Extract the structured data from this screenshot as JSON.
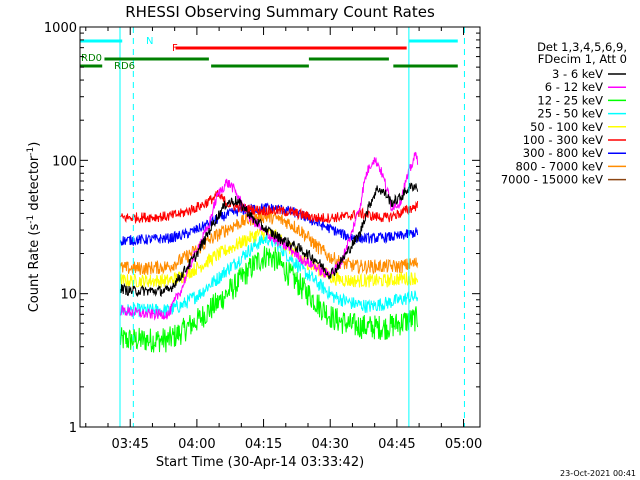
{
  "chart_data": {
    "type": "line",
    "title": "RHESSI Observing Summary Count Rates",
    "xlabel": "Start Time (30-Apr-14 03:33:42)",
    "ylabel_pre": "Count Rate (s",
    "ylabel_sup1": "-1",
    "ylabel_mid": " detector",
    "ylabel_sup2": "-1",
    "ylabel_post": ")",
    "y_scale": "log",
    "ylim": [
      1,
      1000
    ],
    "xlim_minutes": [
      0,
      90
    ],
    "y_ticks": [
      {
        "value": 1,
        "label": "1"
      },
      {
        "value": 10,
        "label": "10"
      },
      {
        "value": 100,
        "label": "100"
      },
      {
        "value": 1000,
        "label": "1000"
      }
    ],
    "x_ticks": [
      {
        "minute": 11.3,
        "label": "03:45"
      },
      {
        "minute": 26.3,
        "label": "04:00"
      },
      {
        "minute": 41.3,
        "label": "04:15"
      },
      {
        "minute": 56.3,
        "label": "04:30"
      },
      {
        "minute": 71.3,
        "label": "04:45"
      },
      {
        "minute": 86.3,
        "label": "05:00"
      }
    ],
    "legend_header": [
      "Det 1,3,4,5,6,9,",
      "FDecim 1, Att 0"
    ],
    "data_gap_minutes": [
      [
        0,
        9
      ],
      [
        73,
        90
      ]
    ],
    "series": [
      {
        "name": "3 - 6 keV",
        "color": "#000000",
        "points": [
          [
            9,
            11
          ],
          [
            11,
            10.5
          ],
          [
            15,
            10.5
          ],
          [
            20,
            10.5
          ],
          [
            23,
            14
          ],
          [
            26,
            19
          ],
          [
            28,
            25
          ],
          [
            31,
            38
          ],
          [
            33,
            48
          ],
          [
            35,
            50
          ],
          [
            37,
            44
          ],
          [
            39,
            36
          ],
          [
            42,
            30
          ],
          [
            45,
            26
          ],
          [
            48,
            23
          ],
          [
            51,
            20
          ],
          [
            53,
            18
          ],
          [
            54.5,
            16
          ],
          [
            56,
            14
          ],
          [
            57.5,
            15
          ],
          [
            60,
            20
          ],
          [
            63,
            28
          ],
          [
            65,
            45
          ],
          [
            67,
            62
          ],
          [
            69,
            55
          ],
          [
            70,
            48
          ],
          [
            72,
            52
          ],
          [
            74,
            62
          ],
          [
            75.5,
            65
          ],
          [
            76,
            60
          ]
        ]
      },
      {
        "name": "6 - 12 keV",
        "color": "#ff00ff",
        "points": [
          [
            9,
            7.5
          ],
          [
            15,
            7
          ],
          [
            20,
            7
          ],
          [
            23,
            11
          ],
          [
            26,
            20
          ],
          [
            29,
            32
          ],
          [
            31,
            55
          ],
          [
            33,
            68
          ],
          [
            34,
            65
          ],
          [
            36,
            50
          ],
          [
            38,
            38
          ],
          [
            41,
            30
          ],
          [
            44,
            25
          ],
          [
            47,
            22
          ],
          [
            50,
            18
          ],
          [
            53,
            16
          ],
          [
            55,
            14
          ],
          [
            57,
            14.5
          ],
          [
            59,
            18
          ],
          [
            61,
            27
          ],
          [
            63,
            45
          ],
          [
            64.5,
            80
          ],
          [
            66,
            102
          ],
          [
            67,
            95
          ],
          [
            68.5,
            70
          ],
          [
            70,
            45
          ],
          [
            72,
            48
          ],
          [
            74,
            80
          ],
          [
            75.5,
            110
          ],
          [
            76,
            100
          ]
        ]
      },
      {
        "name": "12 - 25 keV",
        "color": "#00ff00",
        "points": [
          [
            9,
            4.5
          ],
          [
            15,
            4.5
          ],
          [
            20,
            4.5
          ],
          [
            23,
            5.2
          ],
          [
            27,
            6.5
          ],
          [
            31,
            8.5
          ],
          [
            35,
            11.5
          ],
          [
            38,
            15
          ],
          [
            40,
            17.5
          ],
          [
            42,
            19.5
          ],
          [
            44,
            18
          ],
          [
            47,
            14
          ],
          [
            50,
            11
          ],
          [
            54,
            8
          ],
          [
            57,
            6.5
          ],
          [
            61,
            5.8
          ],
          [
            65,
            5.6
          ],
          [
            69,
            5.6
          ],
          [
            72,
            6
          ],
          [
            74,
            6.3
          ],
          [
            76,
            6.5
          ]
        ]
      },
      {
        "name": "25 - 50 keV",
        "color": "#00ffff",
        "points": [
          [
            9,
            7.5
          ],
          [
            15,
            7.5
          ],
          [
            20,
            7.5
          ],
          [
            23,
            8.2
          ],
          [
            27,
            10
          ],
          [
            31,
            13
          ],
          [
            35,
            17
          ],
          [
            38,
            21
          ],
          [
            40,
            24
          ],
          [
            42,
            26
          ],
          [
            44,
            24
          ],
          [
            47,
            19
          ],
          [
            50,
            15
          ],
          [
            54,
            11.5
          ],
          [
            57,
            9.5
          ],
          [
            61,
            8.5
          ],
          [
            65,
            8
          ],
          [
            69,
            8.5
          ],
          [
            72,
            9
          ],
          [
            74,
            9.3
          ],
          [
            76,
            9.5
          ]
        ]
      },
      {
        "name": "50 - 100 keV",
        "color": "#ffff00",
        "points": [
          [
            9,
            12.5
          ],
          [
            15,
            12.5
          ],
          [
            20,
            12.5
          ],
          [
            23,
            13.5
          ],
          [
            27,
            16
          ],
          [
            31,
            19.5
          ],
          [
            35,
            23
          ],
          [
            38,
            26
          ],
          [
            40,
            28
          ],
          [
            42,
            28.5
          ],
          [
            44,
            27
          ],
          [
            47,
            22
          ],
          [
            50,
            18
          ],
          [
            54,
            15
          ],
          [
            57,
            13
          ],
          [
            61,
            12.5
          ],
          [
            65,
            12.5
          ],
          [
            69,
            12.5
          ],
          [
            72,
            13
          ],
          [
            74,
            13
          ],
          [
            76,
            13.2
          ]
        ]
      },
      {
        "name": "100 - 300 keV",
        "color": "#ff0000",
        "points": [
          [
            9,
            37
          ],
          [
            15,
            37.5
          ],
          [
            20,
            38
          ],
          [
            23,
            40
          ],
          [
            26,
            44
          ],
          [
            28,
            47
          ],
          [
            30,
            52
          ],
          [
            31,
            55
          ],
          [
            33,
            48
          ],
          [
            35,
            45
          ],
          [
            38,
            43
          ],
          [
            41,
            42
          ],
          [
            44,
            42
          ],
          [
            47,
            41
          ],
          [
            50,
            39
          ],
          [
            53,
            37
          ],
          [
            56,
            37
          ],
          [
            58,
            37.5
          ],
          [
            60,
            38
          ],
          [
            63,
            40
          ],
          [
            66,
            38
          ],
          [
            69,
            37
          ],
          [
            72,
            40
          ],
          [
            74,
            43
          ],
          [
            76,
            46
          ]
        ]
      },
      {
        "name": "300 - 800 keV",
        "color": "#0000ff",
        "points": [
          [
            9,
            25
          ],
          [
            15,
            25.5
          ],
          [
            20,
            26
          ],
          [
            24,
            28
          ],
          [
            27,
            31
          ],
          [
            30,
            35
          ],
          [
            33,
            39
          ],
          [
            36,
            42
          ],
          [
            39,
            43.5
          ],
          [
            42,
            44
          ],
          [
            45,
            43
          ],
          [
            48,
            41
          ],
          [
            51,
            37
          ],
          [
            54,
            33
          ],
          [
            57,
            30
          ],
          [
            60,
            27
          ],
          [
            63,
            26
          ],
          [
            66,
            26
          ],
          [
            69,
            26.5
          ],
          [
            72,
            27
          ],
          [
            74,
            28
          ],
          [
            76,
            29
          ]
        ]
      },
      {
        "name": "800 - 7000 keV",
        "color": "#ff8c00",
        "points": [
          [
            9,
            15.5
          ],
          [
            15,
            15.5
          ],
          [
            20,
            16
          ],
          [
            23,
            18
          ],
          [
            26,
            21
          ],
          [
            29,
            25
          ],
          [
            32,
            29
          ],
          [
            35,
            33
          ],
          [
            38,
            36
          ],
          [
            41,
            38
          ],
          [
            44,
            37
          ],
          [
            47,
            34
          ],
          [
            50,
            29
          ],
          [
            53,
            23
          ],
          [
            56,
            19
          ],
          [
            59,
            17
          ],
          [
            62,
            16
          ],
          [
            65,
            16
          ],
          [
            69,
            16
          ],
          [
            72,
            16
          ],
          [
            74,
            16.5
          ],
          [
            76,
            17
          ]
        ]
      },
      {
        "name": "7000 - 15000 keV",
        "color": "#8b4513",
        "points": []
      }
    ],
    "status_bars": [
      {
        "label": "N",
        "color": "#00ffff",
        "segments": [
          [
            0,
            9.5
          ],
          [
            74,
            85
          ]
        ]
      },
      {
        "label": "F",
        "color": "#ff0000",
        "segments": [
          [
            21.5,
            73.5
          ]
        ]
      },
      {
        "label": "RD0",
        "color": "#008000",
        "segments": [
          [
            5.5,
            29
          ],
          [
            51.5,
            69.5
          ]
        ]
      },
      {
        "label": "RD6",
        "color": "#008000",
        "segments": [
          [
            0,
            5
          ],
          [
            29.5,
            51.5
          ],
          [
            70.5,
            85
          ]
        ]
      }
    ],
    "gap_markers": [
      {
        "minute": 9,
        "kind": "solid"
      },
      {
        "minute": 12,
        "kind": "dashed"
      },
      {
        "minute": 74,
        "kind": "solid"
      },
      {
        "minute": 86.5,
        "kind": "dashed"
      }
    ]
  },
  "footer": {
    "date": "23-Oct-2021 00:41"
  }
}
